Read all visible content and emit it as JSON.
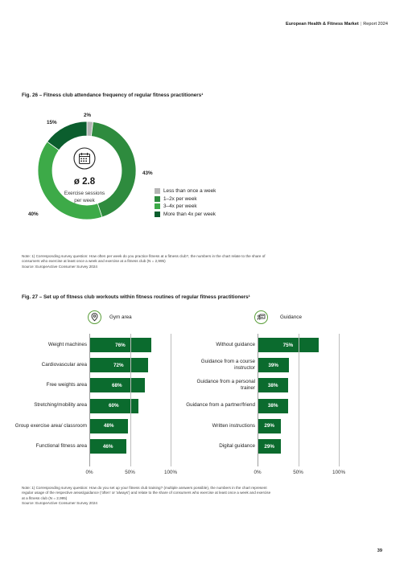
{
  "header": {
    "report_name": "European Health & Fitness Market",
    "separator": "|",
    "report_year": "Report 2024"
  },
  "fig26": {
    "title": "Fig. 26 – Fitness club attendance frequency of regular fitness practitioners¹",
    "center_value": "ø 2.8",
    "center_caption_line1": "Exercise sessions",
    "center_caption_line2": "per week",
    "icon": "calendar-icon",
    "note_lines": [
      "Note: 1) Corresponding survey question: How often per week do you practice fitness at a fitness club?, the numbers in the chart relate to the share of",
      "consumers who exercise at least once a week and exercise at a fitness club (N = 2,995)",
      "Source: EuropeActive Consumer Survey 2024"
    ]
  },
  "fig27": {
    "title": "Fig. 27 – Set up of fitness club workouts within fitness routines of regular fitness practitioners¹",
    "gym_area_label": "Gym area",
    "gym_area_icon": "location-pin-icon",
    "guidance_label": "Guidance",
    "guidance_icon": "trainer-board-icon",
    "note_lines": [
      "Note: 1) Corresponding survey question: How do you set up your fitness club training? (multiple answers possible), the numbers in the chart represent",
      "regular usage of the respective areas/guidance ('often' or 'always') and relate to the share of consumers who exercise at least once a week and exercise",
      "at a fitness club (N = 2,995)",
      "Source: EuropeActive Consumer Survey 2024"
    ]
  },
  "page_number": "39",
  "colors": {
    "less_than_once": "#b5b5b5",
    "one_two": "#2e8b3e",
    "three_four": "#3daa48",
    "more_than_four": "#0b5e2e",
    "bar": "#0b6b2e",
    "icon_outline": "#5a9e3a"
  },
  "chart_data": [
    {
      "type": "pie",
      "variant": "donut",
      "labels": [
        "Less than once a week",
        "1–2x per week",
        "3–4x per week",
        "More than 4x per week"
      ],
      "values": [
        2,
        43,
        40,
        15
      ],
      "value_labels": [
        "2%",
        "43%",
        "40%",
        "15%"
      ],
      "legend_position": "right"
    },
    {
      "type": "bar",
      "orientation": "horizontal",
      "panel": "Gym area",
      "categories": [
        "Weight machines",
        "Cardiovascular area",
        "Free weights area",
        "Stretching/mobility area",
        "Group exercise area/ classroom",
        "Functional fitness area"
      ],
      "values": [
        76,
        72,
        68,
        60,
        48,
        46
      ],
      "value_labels": [
        "76%",
        "72%",
        "68%",
        "60%",
        "48%",
        "46%"
      ],
      "xlim": [
        0,
        100
      ],
      "x_ticks": [
        "0%",
        "50%",
        "100%"
      ]
    },
    {
      "type": "bar",
      "orientation": "horizontal",
      "panel": "Guidance",
      "categories": [
        "Without guidance",
        "Guidance from a course instructor",
        "Guidance from a personal trainer",
        "Guidance from a partner/friend",
        "Written instructions",
        "Digital guidance"
      ],
      "values": [
        75,
        39,
        38,
        38,
        29,
        29
      ],
      "value_labels": [
        "75%",
        "39%",
        "38%",
        "38%",
        "29%",
        "29%"
      ],
      "xlim": [
        0,
        100
      ],
      "x_ticks": [
        "0%",
        "50%",
        "100%"
      ]
    }
  ]
}
